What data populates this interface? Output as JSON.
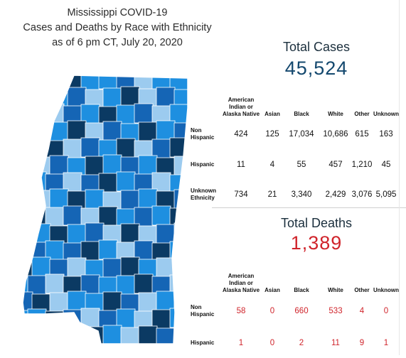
{
  "title_lines": [
    "Mississippi COVID-19",
    "Cases and Deaths by Race with Ethnicity",
    "as of 6 pm CT, July 20, 2020"
  ],
  "colors": {
    "dark": "#0b3a63",
    "medium": "#1565b5",
    "bright": "#1e8fe0",
    "light": "#9ccbef"
  },
  "cases": {
    "title": "Total Cases",
    "total": "45,524",
    "headers": [
      "American Indian or Alaska Native",
      "Asian",
      "Black",
      "White",
      "Other",
      "Unknown"
    ],
    "rows": [
      {
        "label": "Non Hispanic",
        "values": [
          "424",
          "125",
          "17,034",
          "10,686",
          "615",
          "163"
        ]
      },
      {
        "label": "Hispanic",
        "values": [
          "11",
          "4",
          "55",
          "457",
          "1,210",
          "45"
        ]
      },
      {
        "label": "Unknown Ethnicity",
        "values": [
          "734",
          "21",
          "3,340",
          "2,429",
          "3,076",
          "5,095"
        ]
      }
    ]
  },
  "deaths": {
    "title": "Total Deaths",
    "total": "1,389",
    "headers": [
      "American Indian or Alaska Native",
      "Asian",
      "Black",
      "White",
      "Other",
      "Unknown"
    ],
    "rows": [
      {
        "label": "Non Hispanic",
        "values": [
          "58",
          "0",
          "660",
          "533",
          "4",
          "0"
        ]
      },
      {
        "label": "Hispanic",
        "values": [
          "1",
          "0",
          "2",
          "11",
          "9",
          "1"
        ]
      }
    ]
  }
}
